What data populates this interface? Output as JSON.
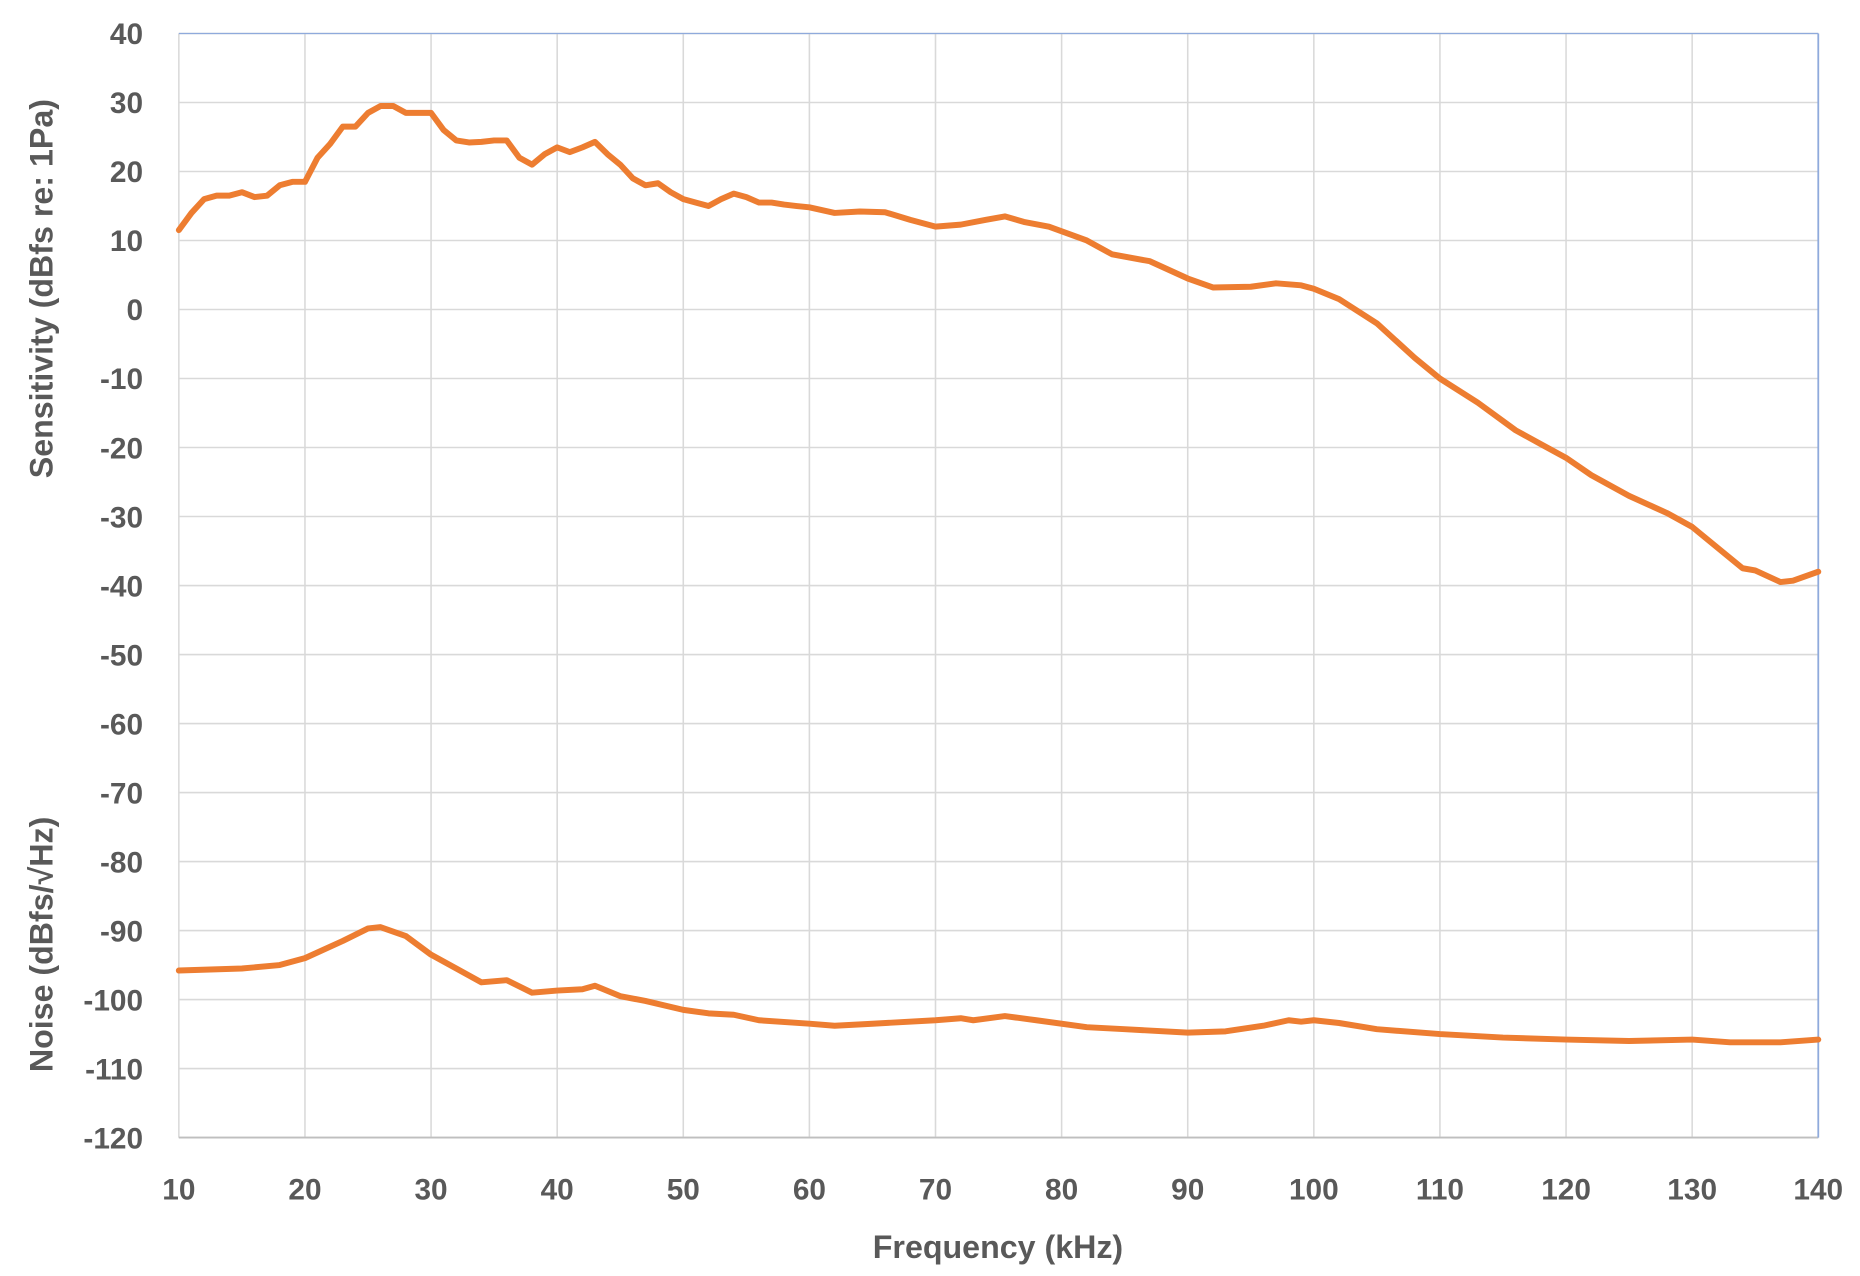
{
  "chart_data": {
    "type": "line",
    "xlabel": "Frequency (kHz)",
    "ylabels": [
      "Sensitivity (dBfs re: 1Pa)",
      "Noise (dBfs/√Hz)"
    ],
    "xlim": [
      10,
      140
    ],
    "ylim": [
      -120,
      40
    ],
    "xticks": [
      "10",
      "20",
      "30",
      "40",
      "50",
      "60",
      "70",
      "80",
      "90",
      "100",
      "110",
      "120",
      "130",
      "140"
    ],
    "yticks": [
      "40",
      "30",
      "20",
      "10",
      "0",
      "-10",
      "-20",
      "-30",
      "-40",
      "-50",
      "-60",
      "-70",
      "-80",
      "-90",
      "-100",
      "-110",
      "-120"
    ],
    "grid": true,
    "line_color": "#ED7D31",
    "series": [
      {
        "x": [
          10,
          11,
          12,
          13,
          14,
          15,
          16,
          17,
          18,
          19,
          20,
          21,
          22,
          23,
          24,
          25,
          26,
          27,
          28,
          29,
          30,
          31,
          32,
          33,
          34,
          35,
          36,
          37,
          38,
          39,
          40,
          41,
          42,
          43,
          44,
          45,
          46,
          47,
          48,
          49,
          50,
          51,
          52,
          53,
          54,
          55,
          56,
          57,
          58,
          59,
          60,
          62,
          64,
          66,
          68,
          70,
          72,
          74,
          75.5,
          77,
          79,
          82,
          84,
          87,
          90,
          92,
          95,
          97,
          99,
          100,
          102,
          105,
          108,
          110,
          113,
          116,
          118,
          120,
          122,
          125,
          128,
          130,
          132,
          134,
          135,
          137,
          138,
          140
        ],
        "y": [
          11.5,
          14,
          16,
          16.5,
          16.5,
          17,
          16.3,
          16.5,
          18,
          18.5,
          18.5,
          22,
          24,
          26.5,
          26.5,
          28.5,
          29.5,
          29.5,
          28.5,
          28.5,
          28.5,
          26,
          24.5,
          24.2,
          24.3,
          24.5,
          24.5,
          22,
          21,
          22.5,
          23.5,
          22.8,
          23.5,
          24.3,
          22.5,
          21,
          19,
          18,
          18.3,
          17,
          16,
          15.5,
          15,
          16,
          16.8,
          16.3,
          15.5,
          15.5,
          15.2,
          15,
          14.8,
          14,
          14.2,
          14.1,
          13,
          12,
          12.3,
          13,
          13.5,
          12.7,
          12,
          10,
          8,
          7,
          4.5,
          3.2,
          3.3,
          3.8,
          3.5,
          3,
          1.5,
          -2,
          -7,
          -10,
          -13.5,
          -17.5,
          -19.5,
          -21.5,
          -24,
          -27,
          -29.5,
          -31.5,
          -34.5,
          -37.5,
          -37.8,
          -39.5,
          -39.3,
          -38
        ]
      },
      {
        "x": [
          10,
          15,
          18,
          20,
          23,
          25,
          26,
          28,
          30,
          32,
          34,
          36,
          38,
          40,
          42,
          43,
          45,
          47,
          50,
          52,
          54,
          56,
          60,
          62,
          65,
          70,
          72,
          73,
          75.5,
          78,
          82,
          85,
          90,
          93,
          96,
          98,
          99,
          100,
          102,
          105,
          110,
          115,
          120,
          125,
          130,
          133,
          137,
          140
        ],
        "y": [
          -95.8,
          -95.5,
          -95,
          -94,
          -91.5,
          -89.7,
          -89.5,
          -90.8,
          -93.5,
          -95.5,
          -97.5,
          -97.2,
          -99,
          -98.7,
          -98.5,
          -98,
          -99.5,
          -100.2,
          -101.5,
          -102,
          -102.2,
          -103,
          -103.5,
          -103.8,
          -103.5,
          -103,
          -102.7,
          -103,
          -102.4,
          -103,
          -104,
          -104.3,
          -104.8,
          -104.6,
          -103.8,
          -103,
          -103.2,
          -103,
          -103.4,
          -104.3,
          -105,
          -105.5,
          -105.8,
          -106,
          -105.8,
          -106.2,
          -106.2,
          -105.8
        ]
      }
    ]
  }
}
